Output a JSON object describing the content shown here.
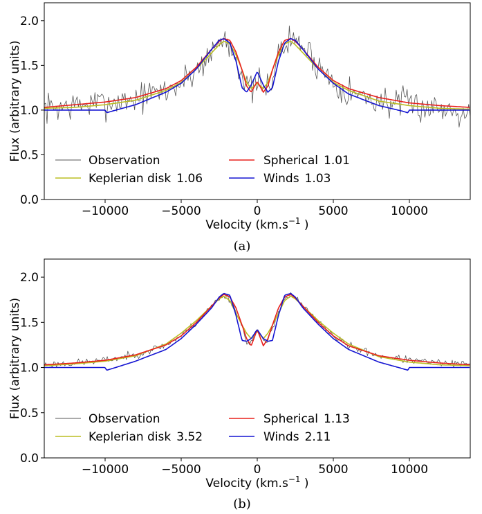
{
  "chart_data": [
    {
      "type": "line",
      "caption": "(a)",
      "xlabel": "Velocity (km.s",
      "xlabel_sup": "−1",
      "xlabel_end": ")",
      "ylabel": "Flux (arbitrary units)",
      "xlim": [
        -14000,
        14000
      ],
      "ylim": [
        0.0,
        2.2
      ],
      "x_ticks": [
        -10000,
        -5000,
        0,
        5000,
        10000
      ],
      "x_tick_labels": [
        "−10000",
        "−5000",
        "0",
        "5000",
        "10000"
      ],
      "y_ticks": [
        0.0,
        0.5,
        1.0,
        1.5,
        2.0
      ],
      "y_tick_labels": [
        "0.0",
        "0.5",
        "1.0",
        "1.5",
        "2.0"
      ],
      "grid": false,
      "legend_location": "lower-left",
      "series": [
        {
          "name": "Observation",
          "color": "#555555",
          "kind": "noisy",
          "noise": 0.085,
          "seed": 7,
          "x": [
            -14000,
            -12000,
            -10000,
            -8000,
            -6000,
            -5000,
            -4000,
            -3000,
            -2500,
            -2200,
            -1800,
            -1400,
            -1000,
            -700,
            -400,
            0,
            400,
            700,
            1000,
            1400,
            1800,
            2200,
            2500,
            3000,
            4000,
            5000,
            6000,
            8000,
            10000,
            12000,
            14000
          ],
          "y": [
            1.02,
            1.05,
            1.08,
            1.13,
            1.22,
            1.3,
            1.45,
            1.65,
            1.75,
            1.82,
            1.72,
            1.6,
            1.4,
            1.26,
            1.22,
            1.3,
            1.22,
            1.26,
            1.4,
            1.6,
            1.72,
            1.78,
            1.78,
            1.72,
            1.5,
            1.32,
            1.2,
            1.1,
            1.06,
            1.02,
            1.0
          ]
        },
        {
          "name": "Keplerian disk",
          "label_value": "1.06",
          "color": "#bcbd22",
          "x": [
            -14000,
            -12000,
            -10000,
            -8000,
            -6000,
            -5000,
            -4000,
            -3000,
            -2500,
            -2200,
            -1800,
            -1400,
            -1000,
            -700,
            -400,
            0,
            400,
            700,
            1000,
            1400,
            1800,
            2200,
            2500,
            3000,
            4000,
            5000,
            6000,
            8000,
            10000,
            12000,
            14000
          ],
          "y": [
            1.02,
            1.03,
            1.06,
            1.11,
            1.22,
            1.31,
            1.46,
            1.64,
            1.73,
            1.77,
            1.74,
            1.62,
            1.45,
            1.31,
            1.24,
            1.3,
            1.24,
            1.31,
            1.45,
            1.62,
            1.74,
            1.77,
            1.73,
            1.64,
            1.46,
            1.31,
            1.22,
            1.1,
            1.05,
            1.02,
            1.01
          ]
        },
        {
          "name": "Spherical",
          "label_value": "1.01",
          "color": "#e8201c",
          "x": [
            -14000,
            -12000,
            -10000,
            -8000,
            -6000,
            -5000,
            -4000,
            -3000,
            -2500,
            -2200,
            -1800,
            -1400,
            -1000,
            -700,
            -400,
            0,
            400,
            700,
            1000,
            1400,
            1800,
            2200,
            2500,
            3000,
            4000,
            5000,
            6000,
            8000,
            10000,
            12000,
            14000
          ],
          "y": [
            1.03,
            1.06,
            1.09,
            1.14,
            1.24,
            1.33,
            1.48,
            1.68,
            1.77,
            1.8,
            1.78,
            1.65,
            1.45,
            1.27,
            1.2,
            1.32,
            1.2,
            1.27,
            1.45,
            1.65,
            1.78,
            1.8,
            1.77,
            1.68,
            1.48,
            1.33,
            1.24,
            1.14,
            1.08,
            1.05,
            1.03
          ]
        },
        {
          "name": "Winds",
          "label_value": "1.03",
          "color": "#1414d2",
          "x": [
            -14000,
            -12000,
            -10000,
            -9900,
            -9500,
            -8000,
            -6000,
            -5000,
            -4000,
            -3000,
            -2500,
            -2200,
            -1800,
            -1400,
            -1000,
            -700,
            -400,
            0,
            400,
            700,
            1000,
            1400,
            1800,
            2200,
            2500,
            3000,
            4000,
            5000,
            6000,
            8000,
            9500,
            9900,
            10000,
            12000,
            14000
          ],
          "y": [
            1.0,
            1.0,
            1.0,
            0.97,
            0.99,
            1.06,
            1.2,
            1.3,
            1.46,
            1.68,
            1.78,
            1.8,
            1.75,
            1.55,
            1.25,
            1.2,
            1.28,
            1.43,
            1.28,
            1.2,
            1.25,
            1.55,
            1.75,
            1.8,
            1.78,
            1.68,
            1.46,
            1.3,
            1.18,
            1.05,
            0.99,
            0.97,
            1.0,
            1.0,
            1.0
          ]
        }
      ]
    },
    {
      "type": "line",
      "caption": "(b)",
      "xlabel": "Velocity (km.s",
      "xlabel_sup": "−1",
      "xlabel_end": ")",
      "ylabel": "Flux (arbitrary units)",
      "xlim": [
        -14000,
        14000
      ],
      "ylim": [
        0.0,
        2.2
      ],
      "x_ticks": [
        -10000,
        -5000,
        0,
        5000,
        10000
      ],
      "x_tick_labels": [
        "−10000",
        "−5000",
        "0",
        "5000",
        "10000"
      ],
      "y_ticks": [
        0.0,
        0.5,
        1.0,
        1.5,
        2.0
      ],
      "y_tick_labels": [
        "0.0",
        "0.5",
        "1.0",
        "1.5",
        "2.0"
      ],
      "grid": false,
      "legend_location": "lower-left",
      "series": [
        {
          "name": "Observation",
          "color": "#555555",
          "kind": "noisy",
          "noise": 0.02,
          "seed": 23,
          "x": [
            -14000,
            -12000,
            -10000,
            -8000,
            -6000,
            -5000,
            -4000,
            -3000,
            -2500,
            -2200,
            -1800,
            -1400,
            -1000,
            -700,
            -400,
            0,
            400,
            700,
            1000,
            1400,
            1800,
            2200,
            2500,
            3000,
            4000,
            5000,
            6000,
            8000,
            10000,
            12000,
            14000
          ],
          "y": [
            1.03,
            1.05,
            1.08,
            1.14,
            1.25,
            1.35,
            1.5,
            1.68,
            1.77,
            1.8,
            1.76,
            1.62,
            1.45,
            1.3,
            1.27,
            1.43,
            1.27,
            1.3,
            1.45,
            1.62,
            1.76,
            1.8,
            1.77,
            1.68,
            1.5,
            1.35,
            1.24,
            1.13,
            1.08,
            1.05,
            1.03
          ]
        },
        {
          "name": "Keplerian disk",
          "label_value": "3.52",
          "color": "#bcbd22",
          "x": [
            -14000,
            -12000,
            -10000,
            -8000,
            -6000,
            -5000,
            -4000,
            -3000,
            -2500,
            -2200,
            -1800,
            -1400,
            -1000,
            -700,
            -400,
            0,
            400,
            700,
            1000,
            1400,
            1800,
            2200,
            2500,
            3000,
            4000,
            5000,
            6000,
            8000,
            10000,
            12000,
            14000
          ],
          "y": [
            1.02,
            1.04,
            1.07,
            1.13,
            1.26,
            1.38,
            1.52,
            1.68,
            1.76,
            1.79,
            1.74,
            1.6,
            1.47,
            1.38,
            1.32,
            1.4,
            1.32,
            1.38,
            1.47,
            1.6,
            1.74,
            1.79,
            1.76,
            1.68,
            1.52,
            1.38,
            1.26,
            1.12,
            1.06,
            1.03,
            1.02
          ]
        },
        {
          "name": "Spherical",
          "label_value": "1.13",
          "color": "#e8201c",
          "x": [
            -14000,
            -12000,
            -10000,
            -8000,
            -6000,
            -5000,
            -4000,
            -3000,
            -2500,
            -2200,
            -1800,
            -1400,
            -1000,
            -700,
            -400,
            0,
            400,
            700,
            1000,
            1400,
            1800,
            2200,
            2500,
            3000,
            4000,
            5000,
            6000,
            8000,
            10000,
            12000,
            14000
          ],
          "y": [
            1.03,
            1.05,
            1.08,
            1.14,
            1.25,
            1.35,
            1.5,
            1.68,
            1.77,
            1.81,
            1.78,
            1.66,
            1.47,
            1.32,
            1.24,
            1.42,
            1.24,
            1.32,
            1.47,
            1.66,
            1.78,
            1.81,
            1.77,
            1.68,
            1.5,
            1.35,
            1.24,
            1.13,
            1.08,
            1.05,
            1.03
          ]
        },
        {
          "name": "Winds",
          "label_value": "2.11",
          "color": "#1414d2",
          "x": [
            -14000,
            -12000,
            -10000,
            -9900,
            -9500,
            -8000,
            -6000,
            -5000,
            -4000,
            -3000,
            -2500,
            -2200,
            -1800,
            -1400,
            -1000,
            -700,
            -400,
            0,
            400,
            700,
            1000,
            1400,
            1800,
            2200,
            2500,
            3000,
            4000,
            5000,
            6000,
            8000,
            9500,
            9900,
            10000,
            12000,
            14000
          ],
          "y": [
            1.0,
            1.0,
            1.0,
            0.97,
            0.99,
            1.07,
            1.2,
            1.32,
            1.48,
            1.66,
            1.78,
            1.82,
            1.8,
            1.58,
            1.3,
            1.29,
            1.32,
            1.42,
            1.32,
            1.29,
            1.3,
            1.58,
            1.8,
            1.82,
            1.78,
            1.66,
            1.48,
            1.32,
            1.2,
            1.06,
            0.99,
            0.97,
            1.0,
            1.0,
            1.0
          ]
        }
      ]
    }
  ]
}
